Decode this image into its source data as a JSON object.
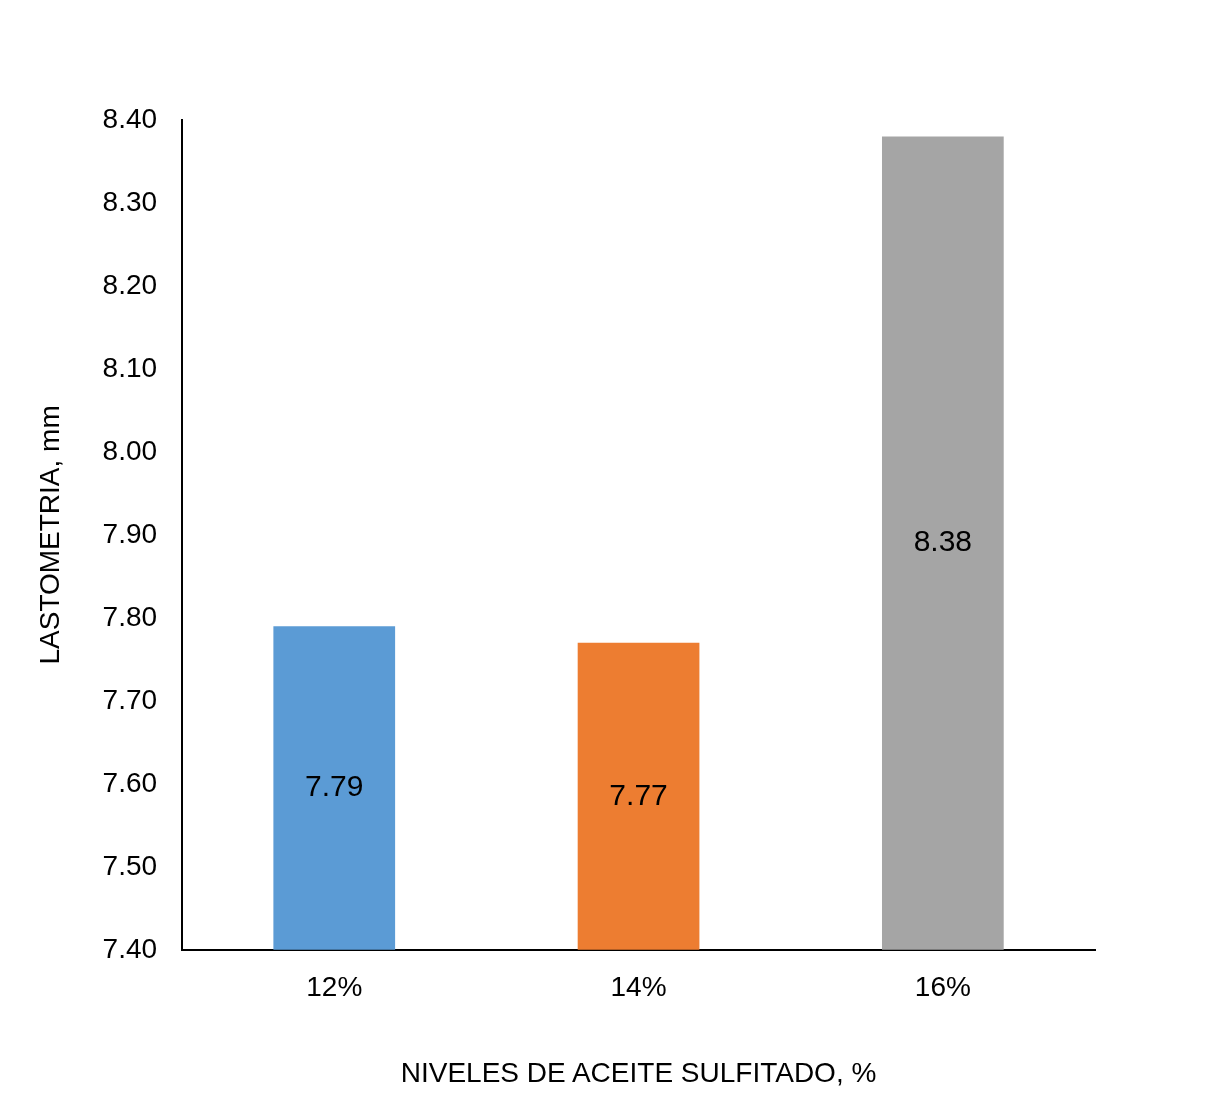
{
  "chart_data": {
    "type": "bar",
    "xlabel": "NIVELES DE ACEITE SULFITADO, %",
    "ylabel": "LASTOMETRIA, mm",
    "categories": [
      "12%",
      "14%",
      "16%"
    ],
    "values": [
      7.79,
      7.77,
      8.38
    ],
    "colors": [
      "#5b9bd5",
      "#ed7d31",
      "#a5a5a5"
    ],
    "ylim": [
      7.4,
      8.4
    ],
    "yticks": [
      {
        "value": 7.4,
        "label": "7.40"
      },
      {
        "value": 7.5,
        "label": "7.50"
      },
      {
        "value": 7.6,
        "label": "7.60"
      },
      {
        "value": 7.7,
        "label": "7.70"
      },
      {
        "value": 7.8,
        "label": "7.80"
      },
      {
        "value": 7.9,
        "label": "7.90"
      },
      {
        "value": 8.0,
        "label": "8.00"
      },
      {
        "value": 8.1,
        "label": "8.10"
      },
      {
        "value": 8.2,
        "label": "8.20"
      },
      {
        "value": 8.3,
        "label": "8.30"
      },
      {
        "value": 8.4,
        "label": "8.40"
      }
    ],
    "data_labels": true,
    "grid": false,
    "legend": false
  }
}
